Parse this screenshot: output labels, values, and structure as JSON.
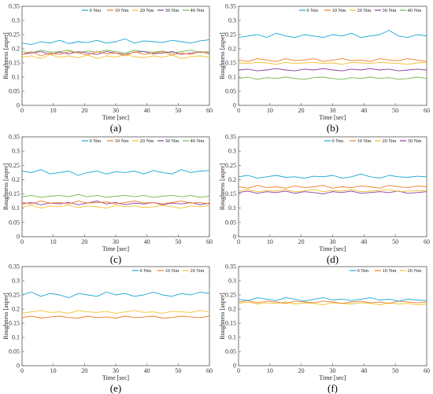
{
  "colors": {
    "0 Nm": "#1aa6d8",
    "10 Nm": "#f07d2a",
    "20 Nm": "#f2c12e",
    "30 Nm": "#8a3d9c",
    "40 Nm": "#6dbb45"
  },
  "chart_data": [
    {
      "type": "line",
      "caption": "(a)",
      "xlabel": "Time [sec]",
      "ylabel": "Roughness [asper]",
      "xlim": [
        0,
        60
      ],
      "ylim": [
        0,
        0.35
      ],
      "xticks": [
        "0",
        "10",
        "20",
        "30",
        "40",
        "50",
        "60"
      ],
      "yticks": [
        "0",
        "0.05",
        "0.1",
        "0.15",
        "0.2",
        "0.25",
        "0.3",
        "0.35"
      ],
      "legend": "top-right",
      "series": [
        {
          "name": "0 Nm",
          "values": [
            0.22,
            0.215,
            0.225,
            0.22,
            0.23,
            0.218,
            0.225,
            0.222,
            0.23,
            0.22,
            0.225,
            0.235,
            0.22,
            0.228,
            0.225,
            0.222,
            0.23,
            0.225,
            0.22,
            0.228,
            0.232
          ]
        },
        {
          "name": "10 Nm",
          "values": [
            0.18,
            0.19,
            0.175,
            0.185,
            0.18,
            0.19,
            0.185,
            0.178,
            0.19,
            0.182,
            0.185,
            0.175,
            0.19,
            0.18,
            0.185,
            0.19,
            0.178,
            0.185,
            0.18,
            0.19,
            0.182
          ]
        },
        {
          "name": "20 Nm",
          "values": [
            0.17,
            0.175,
            0.165,
            0.18,
            0.17,
            0.175,
            0.168,
            0.178,
            0.165,
            0.175,
            0.17,
            0.18,
            0.172,
            0.168,
            0.175,
            0.17,
            0.178,
            0.165,
            0.172,
            0.175,
            0.17
          ]
        },
        {
          "name": "30 Nm",
          "values": [
            0.18,
            0.185,
            0.19,
            0.18,
            0.188,
            0.182,
            0.19,
            0.185,
            0.18,
            0.19,
            0.185,
            0.18,
            0.188,
            0.19,
            0.182,
            0.185,
            0.19,
            0.18,
            0.185,
            0.188,
            0.185
          ]
        },
        {
          "name": "40 Nm",
          "values": [
            0.19,
            0.185,
            0.195,
            0.188,
            0.19,
            0.195,
            0.185,
            0.192,
            0.188,
            0.195,
            0.19,
            0.185,
            0.195,
            0.19,
            0.188,
            0.192,
            0.185,
            0.19,
            0.195,
            0.188,
            0.19
          ]
        }
      ]
    },
    {
      "type": "line",
      "caption": "(b)",
      "xlabel": "Time [sec]",
      "ylabel": "Roughness [asper]",
      "xlim": [
        0,
        60
      ],
      "ylim": [
        0,
        0.35
      ],
      "xticks": [
        "0",
        "10",
        "20",
        "30",
        "40",
        "50",
        "60"
      ],
      "yticks": [
        "0",
        "0.05",
        "0.1",
        "0.15",
        "0.2",
        "0.25",
        "0.3",
        "0.35"
      ],
      "legend": "top-right",
      "series": [
        {
          "name": "0 Nm",
          "values": [
            0.24,
            0.245,
            0.25,
            0.24,
            0.255,
            0.245,
            0.24,
            0.25,
            0.245,
            0.24,
            0.25,
            0.245,
            0.255,
            0.24,
            0.245,
            0.25,
            0.265,
            0.245,
            0.24,
            0.25,
            0.245
          ]
        },
        {
          "name": "10 Nm",
          "values": [
            0.16,
            0.155,
            0.165,
            0.16,
            0.155,
            0.165,
            0.158,
            0.16,
            0.165,
            0.155,
            0.16,
            0.165,
            0.158,
            0.16,
            0.155,
            0.165,
            0.16,
            0.158,
            0.165,
            0.16,
            0.155
          ]
        },
        {
          "name": "20 Nm",
          "values": [
            0.15,
            0.148,
            0.152,
            0.15,
            0.145,
            0.152,
            0.148,
            0.15,
            0.152,
            0.148,
            0.15,
            0.145,
            0.152,
            0.15,
            0.148,
            0.152,
            0.15,
            0.148,
            0.145,
            0.15,
            0.152
          ]
        },
        {
          "name": "30 Nm",
          "values": [
            0.125,
            0.128,
            0.122,
            0.125,
            0.13,
            0.125,
            0.122,
            0.128,
            0.125,
            0.13,
            0.125,
            0.122,
            0.128,
            0.125,
            0.13,
            0.125,
            0.128,
            0.122,
            0.125,
            0.128,
            0.125
          ]
        },
        {
          "name": "40 Nm",
          "values": [
            0.095,
            0.1,
            0.092,
            0.098,
            0.095,
            0.1,
            0.095,
            0.092,
            0.098,
            0.1,
            0.095,
            0.092,
            0.098,
            0.095,
            0.1,
            0.095,
            0.098,
            0.092,
            0.095,
            0.1,
            0.095
          ]
        }
      ]
    },
    {
      "type": "line",
      "caption": "(c)",
      "xlabel": "Time [sec]",
      "ylabel": "Roughness [asper]",
      "xlim": [
        0,
        60
      ],
      "ylim": [
        0,
        0.35
      ],
      "xticks": [
        "0",
        "10",
        "20",
        "30",
        "40",
        "50",
        "60"
      ],
      "yticks": [
        "0",
        "0.05",
        "0.1",
        "0.15",
        "0.2",
        "0.25",
        "0.3",
        "0.35"
      ],
      "legend": "top-right",
      "series": [
        {
          "name": "0 Nm",
          "values": [
            0.23,
            0.225,
            0.235,
            0.22,
            0.225,
            0.23,
            0.215,
            0.225,
            0.23,
            0.22,
            0.228,
            0.225,
            0.23,
            0.22,
            0.232,
            0.225,
            0.22,
            0.235,
            0.225,
            0.23,
            0.232
          ]
        },
        {
          "name": "10 Nm",
          "values": [
            0.12,
            0.115,
            0.125,
            0.118,
            0.12,
            0.115,
            0.125,
            0.118,
            0.12,
            0.122,
            0.115,
            0.12,
            0.125,
            0.118,
            0.12,
            0.115,
            0.12,
            0.125,
            0.118,
            0.12,
            0.115
          ]
        },
        {
          "name": "20 Nm",
          "values": [
            0.105,
            0.11,
            0.1,
            0.108,
            0.105,
            0.11,
            0.102,
            0.108,
            0.105,
            0.1,
            0.11,
            0.105,
            0.108,
            0.102,
            0.105,
            0.11,
            0.105,
            0.1,
            0.108,
            0.105,
            0.11
          ]
        },
        {
          "name": "30 Nm",
          "values": [
            0.115,
            0.12,
            0.112,
            0.118,
            0.115,
            0.12,
            0.112,
            0.118,
            0.125,
            0.115,
            0.12,
            0.112,
            0.118,
            0.115,
            0.12,
            0.112,
            0.118,
            0.115,
            0.12,
            0.112,
            0.118
          ]
        },
        {
          "name": "40 Nm",
          "values": [
            0.14,
            0.145,
            0.138,
            0.142,
            0.145,
            0.14,
            0.148,
            0.14,
            0.145,
            0.138,
            0.142,
            0.145,
            0.14,
            0.145,
            0.138,
            0.142,
            0.145,
            0.14,
            0.145,
            0.138,
            0.142
          ]
        }
      ]
    },
    {
      "type": "line",
      "caption": "(d)",
      "xlabel": "Time [sec]",
      "ylabel": "Roughness [asper]",
      "xlim": [
        0,
        60
      ],
      "ylim": [
        0,
        0.35
      ],
      "xticks": [
        "0",
        "10",
        "20",
        "30",
        "40",
        "50",
        "60"
      ],
      "yticks": [
        "0",
        "0.05",
        "0.1",
        "0.15",
        "0.2",
        "0.25",
        "0.3",
        "0.35"
      ],
      "legend": "top-right",
      "series": [
        {
          "name": "0 Nm",
          "values": [
            0.21,
            0.215,
            0.205,
            0.21,
            0.215,
            0.208,
            0.21,
            0.205,
            0.212,
            0.21,
            0.215,
            0.205,
            0.21,
            0.22,
            0.21,
            0.205,
            0.215,
            0.21,
            0.208,
            0.212,
            0.21
          ]
        },
        {
          "name": "10 Nm",
          "values": [
            0.175,
            0.17,
            0.18,
            0.172,
            0.175,
            0.17,
            0.178,
            0.172,
            0.175,
            0.18,
            0.17,
            0.175,
            0.172,
            0.178,
            0.175,
            0.17,
            0.18,
            0.175,
            0.172,
            0.178,
            0.175
          ]
        },
        {
          "name": "20 Nm",
          "values": [
            0.16,
            0.165,
            0.158,
            0.162,
            0.16,
            0.165,
            0.158,
            0.16,
            0.165,
            0.158,
            0.162,
            0.16,
            0.165,
            0.158,
            0.16,
            0.162,
            0.165,
            0.158,
            0.16,
            0.162,
            0.16
          ]
        },
        {
          "name": "30 Nm",
          "values": [
            0.155,
            0.16,
            0.152,
            0.158,
            0.155,
            0.16,
            0.152,
            0.158,
            0.155,
            0.15,
            0.158,
            0.155,
            0.16,
            0.152,
            0.155,
            0.158,
            0.155,
            0.16,
            0.152,
            0.155,
            0.158
          ]
        }
      ]
    },
    {
      "type": "line",
      "caption": "(e)",
      "xlabel": "Time [sec]",
      "ylabel": "Roughness [asper]",
      "xlim": [
        0,
        60
      ],
      "ylim": [
        0,
        0.35
      ],
      "xticks": [
        "0",
        "10",
        "20",
        "30",
        "40",
        "50",
        "60"
      ],
      "yticks": [
        "0",
        "0.05",
        "0.1",
        "0.15",
        "0.2",
        "0.25",
        "0.3",
        "0.35"
      ],
      "legend": "top-right",
      "series": [
        {
          "name": "0 Nm",
          "values": [
            0.25,
            0.26,
            0.245,
            0.255,
            0.25,
            0.24,
            0.255,
            0.25,
            0.245,
            0.26,
            0.25,
            0.255,
            0.245,
            0.25,
            0.26,
            0.25,
            0.245,
            0.255,
            0.25,
            0.26,
            0.255
          ]
        },
        {
          "name": "10 Nm",
          "values": [
            0.17,
            0.175,
            0.168,
            0.172,
            0.175,
            0.17,
            0.168,
            0.175,
            0.17,
            0.172,
            0.168,
            0.175,
            0.17,
            0.172,
            0.175,
            0.168,
            0.17,
            0.175,
            0.172,
            0.17,
            0.175
          ]
        },
        {
          "name": "20 Nm",
          "values": [
            0.185,
            0.19,
            0.195,
            0.188,
            0.19,
            0.185,
            0.195,
            0.19,
            0.188,
            0.192,
            0.185,
            0.19,
            0.195,
            0.188,
            0.19,
            0.185,
            0.192,
            0.19,
            0.188,
            0.195,
            0.19
          ]
        }
      ]
    },
    {
      "type": "line",
      "caption": "(f)",
      "xlabel": "Time [sec]",
      "ylabel": "Roughness [asper]",
      "xlim": [
        0,
        60
      ],
      "ylim": [
        0,
        0.35
      ],
      "xticks": [
        "0",
        "10",
        "20",
        "30",
        "40",
        "50",
        "60"
      ],
      "yticks": [
        "0",
        "0.05",
        "0.1",
        "0.15",
        "0.2",
        "0.25",
        "0.3",
        "0.35"
      ],
      "legend": "top-right",
      "series": [
        {
          "name": "0 Nm",
          "values": [
            0.235,
            0.23,
            0.24,
            0.235,
            0.23,
            0.24,
            0.235,
            0.228,
            0.235,
            0.24,
            0.232,
            0.235,
            0.23,
            0.235,
            0.24,
            0.232,
            0.235,
            0.228,
            0.235,
            0.232,
            0.23
          ]
        },
        {
          "name": "10 Nm",
          "values": [
            0.225,
            0.23,
            0.222,
            0.228,
            0.225,
            0.22,
            0.228,
            0.225,
            0.222,
            0.228,
            0.225,
            0.22,
            0.225,
            0.228,
            0.222,
            0.225,
            0.22,
            0.228,
            0.225,
            0.222,
            0.225
          ]
        },
        {
          "name": "20 Nm",
          "values": [
            0.22,
            0.225,
            0.218,
            0.222,
            0.22,
            0.225,
            0.218,
            0.222,
            0.22,
            0.215,
            0.222,
            0.22,
            0.218,
            0.222,
            0.22,
            0.215,
            0.222,
            0.218,
            0.22,
            0.215,
            0.218
          ]
        }
      ]
    }
  ]
}
